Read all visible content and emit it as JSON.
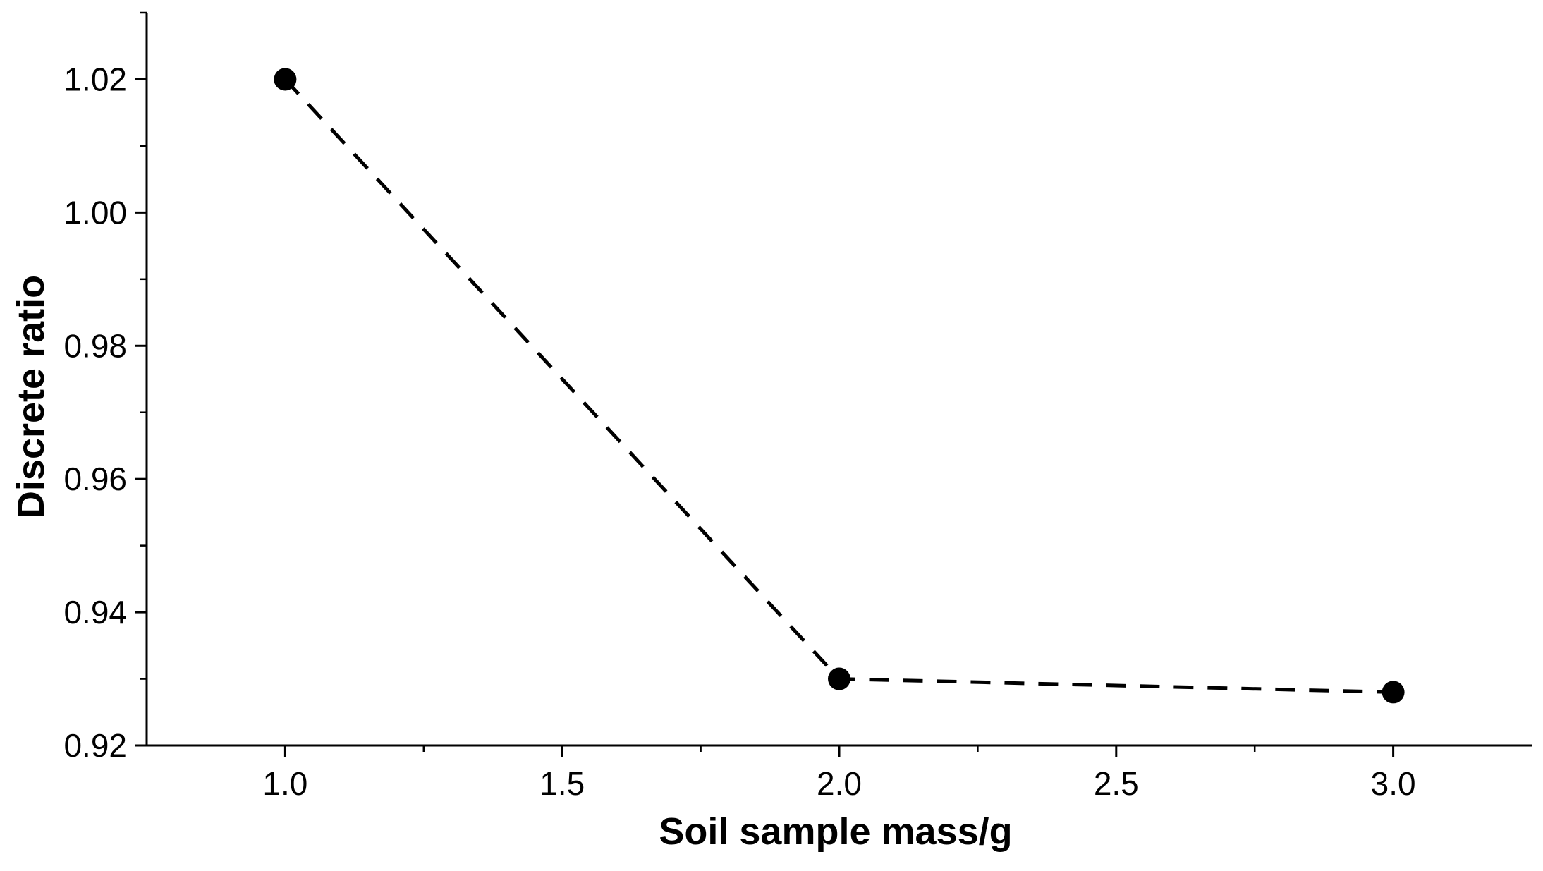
{
  "chart_data": {
    "type": "line",
    "title": "",
    "xlabel": "Soil sample mass/g",
    "ylabel": "Discrete ratio",
    "xlim": [
      0.75,
      3.25
    ],
    "ylim": [
      0.92,
      1.03
    ],
    "x_ticks": [
      1.0,
      1.5,
      2.0,
      2.5,
      3.0
    ],
    "x_tick_labels": [
      "1.0",
      "1.5",
      "2.0",
      "2.5",
      "3.0"
    ],
    "y_ticks": [
      0.92,
      0.94,
      0.96,
      0.98,
      1.0,
      1.02
    ],
    "y_tick_labels": [
      "0.92",
      "0.94",
      "0.96",
      "0.98",
      "1.00",
      "1.02"
    ],
    "grid": false,
    "legend": "none",
    "series": [
      {
        "x": [
          1.0,
          2.0,
          3.0
        ],
        "y": [
          1.02,
          0.93,
          0.928
        ],
        "line_style": "dashed",
        "marker": "filled-circle",
        "color": "#000000"
      }
    ]
  }
}
